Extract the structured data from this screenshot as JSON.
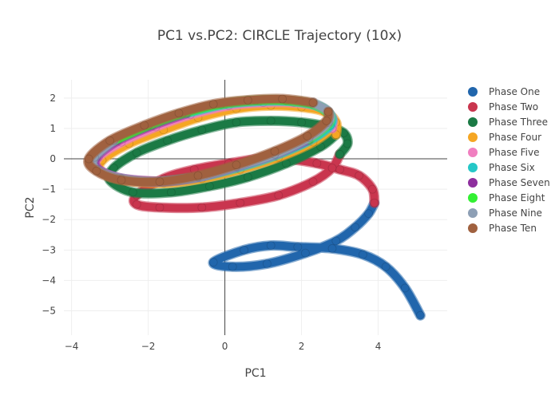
{
  "chart_data": {
    "type": "scatter",
    "title": "PC1 vs.PC2: CIRCLE Trajectory (10x)",
    "xlabel": "PC1",
    "ylabel": "PC2",
    "xlim": [
      -4.2,
      5.8
    ],
    "ylim": [
      -5.8,
      2.6
    ],
    "xticks": [
      -4,
      -2,
      0,
      2,
      4
    ],
    "yticks": [
      -5,
      -4,
      -3,
      -2,
      -1,
      0,
      1,
      2
    ],
    "xtick_labels": [
      "−4",
      "−2",
      "0",
      "2",
      "4"
    ],
    "ytick_labels": [
      "−5",
      "−4",
      "−3",
      "−2",
      "−1",
      "0",
      "1",
      "2"
    ],
    "grid": true,
    "legend_position": "right",
    "series": [
      {
        "name": "Phase One",
        "color": "#2166ac",
        "points": [
          [
            5.1,
            -5.15
          ],
          [
            4.7,
            -4.25
          ],
          [
            4.2,
            -3.55
          ],
          [
            3.6,
            -3.15
          ],
          [
            2.8,
            -2.95
          ],
          [
            1.9,
            -2.9
          ],
          [
            1.2,
            -2.85
          ],
          [
            0.5,
            -3.0
          ],
          [
            -0.3,
            -3.4
          ],
          [
            0.2,
            -3.55
          ],
          [
            1.1,
            -3.45
          ],
          [
            2.1,
            -3.1
          ],
          [
            2.9,
            -2.7
          ],
          [
            3.4,
            -2.25
          ],
          [
            3.75,
            -1.8
          ],
          [
            3.9,
            -1.45
          ]
        ]
      },
      {
        "name": "Phase Two",
        "color": "#c9354e",
        "points": [
          [
            3.9,
            -1.45
          ],
          [
            3.85,
            -1.0
          ],
          [
            3.5,
            -0.55
          ],
          [
            3.0,
            -0.35
          ],
          [
            2.4,
            -0.15
          ],
          [
            1.6,
            0.0
          ],
          [
            0.9,
            0.0
          ],
          [
            0.1,
            -0.15
          ],
          [
            -0.8,
            -0.35
          ],
          [
            -1.6,
            -0.65
          ],
          [
            -2.3,
            -1.2
          ],
          [
            -2.3,
            -1.5
          ],
          [
            -1.7,
            -1.6
          ],
          [
            -0.6,
            -1.6
          ],
          [
            0.4,
            -1.45
          ],
          [
            1.4,
            -1.2
          ],
          [
            2.3,
            -0.75
          ],
          [
            2.8,
            -0.3
          ],
          [
            3.0,
            0.15
          ]
        ]
      },
      {
        "name": "Phase Three",
        "color": "#1b7a45",
        "points": [
          [
            3.0,
            0.15
          ],
          [
            3.2,
            0.5
          ],
          [
            3.1,
            0.85
          ],
          [
            2.7,
            1.05
          ],
          [
            2.0,
            1.2
          ],
          [
            1.2,
            1.25
          ],
          [
            0.3,
            1.2
          ],
          [
            -0.6,
            0.95
          ],
          [
            -1.5,
            0.6
          ],
          [
            -2.3,
            0.2
          ],
          [
            -2.9,
            -0.3
          ],
          [
            -3.0,
            -0.7
          ],
          [
            -2.4,
            -1.1
          ],
          [
            -1.4,
            -1.1
          ],
          [
            -0.4,
            -0.9
          ],
          [
            0.6,
            -0.6
          ],
          [
            1.6,
            -0.15
          ],
          [
            2.5,
            0.4
          ],
          [
            2.9,
            0.8
          ]
        ]
      },
      {
        "name": "Phase Four",
        "color": "#f5a623",
        "points": [
          [
            2.9,
            0.8
          ],
          [
            2.9,
            1.2
          ],
          [
            2.6,
            1.55
          ],
          [
            2.0,
            1.7
          ],
          [
            1.2,
            1.75
          ],
          [
            0.3,
            1.65
          ],
          [
            -0.7,
            1.35
          ],
          [
            -1.6,
            0.95
          ],
          [
            -2.5,
            0.5
          ],
          [
            -3.2,
            -0.05
          ],
          [
            -3.2,
            -0.45
          ],
          [
            -2.6,
            -0.7
          ],
          [
            -1.6,
            -0.8
          ],
          [
            -0.6,
            -0.65
          ],
          [
            0.4,
            -0.35
          ],
          [
            1.4,
            0.05
          ],
          [
            2.3,
            0.55
          ],
          [
            2.8,
            1.0
          ]
        ]
      },
      {
        "name": "Phase Five",
        "color": "#f07fc0",
        "points": [
          [
            2.8,
            1.0
          ],
          [
            2.8,
            1.35
          ],
          [
            2.5,
            1.7
          ],
          [
            1.8,
            1.85
          ],
          [
            1.0,
            1.85
          ],
          [
            0.1,
            1.75
          ],
          [
            -0.9,
            1.45
          ],
          [
            -1.8,
            1.05
          ],
          [
            -2.7,
            0.55
          ],
          [
            -3.3,
            0.05
          ],
          [
            -3.3,
            -0.35
          ],
          [
            -2.7,
            -0.65
          ],
          [
            -1.7,
            -0.75
          ]
        ]
      },
      {
        "name": "Phase Six",
        "color": "#25c7c7",
        "points": [
          [
            -1.7,
            -0.75
          ],
          [
            -0.7,
            -0.6
          ],
          [
            0.3,
            -0.3
          ],
          [
            1.3,
            0.1
          ],
          [
            2.2,
            0.6
          ],
          [
            2.75,
            1.1
          ],
          [
            2.75,
            1.45
          ],
          [
            2.4,
            1.75
          ],
          [
            1.7,
            1.9
          ],
          [
            0.9,
            1.9
          ],
          [
            0.0,
            1.8
          ],
          [
            -1.0,
            1.5
          ]
        ]
      },
      {
        "name": "Phase Seven",
        "color": "#8e2f9e",
        "points": [
          [
            -1.0,
            1.5
          ],
          [
            -1.9,
            1.1
          ],
          [
            -2.8,
            0.6
          ],
          [
            -3.35,
            0.05
          ],
          [
            -3.3,
            -0.35
          ],
          [
            -2.7,
            -0.65
          ],
          [
            -1.7,
            -0.75
          ],
          [
            -0.7,
            -0.6
          ],
          [
            0.3,
            -0.25
          ],
          [
            1.3,
            0.15
          ],
          [
            2.2,
            0.65
          ]
        ]
      },
      {
        "name": "Phase Eight",
        "color": "#33f033",
        "points": [
          [
            2.2,
            0.65
          ],
          [
            2.7,
            1.15
          ],
          [
            2.7,
            1.5
          ],
          [
            2.3,
            1.8
          ],
          [
            1.6,
            1.92
          ],
          [
            0.8,
            1.92
          ],
          [
            -0.1,
            1.8
          ],
          [
            -1.1,
            1.5
          ],
          [
            -2.0,
            1.1
          ],
          [
            -2.9,
            0.6
          ]
        ]
      },
      {
        "name": "Phase Nine",
        "color": "#8d9fb5",
        "points": [
          [
            -2.9,
            0.6
          ],
          [
            -3.4,
            0.05
          ],
          [
            -3.35,
            -0.35
          ],
          [
            -2.7,
            -0.65
          ],
          [
            -1.7,
            -0.75
          ],
          [
            -0.7,
            -0.6
          ],
          [
            0.3,
            -0.25
          ],
          [
            1.3,
            0.15
          ],
          [
            2.2,
            0.7
          ],
          [
            2.7,
            1.2
          ],
          [
            2.7,
            1.55
          ],
          [
            2.3,
            1.85
          ]
        ]
      },
      {
        "name": "Phase Ten",
        "color": "#a0613f",
        "points": [
          [
            2.3,
            1.85
          ],
          [
            1.5,
            1.97
          ],
          [
            0.6,
            1.93
          ],
          [
            -0.3,
            1.8
          ],
          [
            -1.2,
            1.5
          ],
          [
            -2.1,
            1.1
          ],
          [
            -3.0,
            0.6
          ],
          [
            -3.55,
            0.0
          ],
          [
            -3.35,
            -0.4
          ],
          [
            -2.7,
            -0.7
          ],
          [
            -1.7,
            -0.75
          ],
          [
            -0.7,
            -0.55
          ],
          [
            0.3,
            -0.2
          ],
          [
            1.3,
            0.25
          ],
          [
            2.15,
            0.75
          ],
          [
            2.65,
            1.25
          ],
          [
            2.7,
            1.55
          ]
        ]
      }
    ]
  }
}
